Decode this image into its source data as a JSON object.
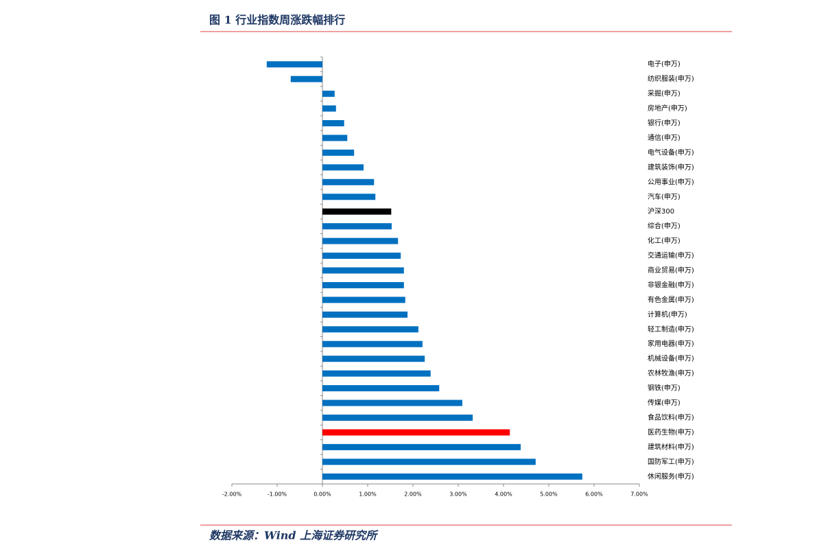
{
  "header": {
    "title": "图 1 行业指数周涨跌幅排行"
  },
  "footer": {
    "source": "数据来源：Wind  上海证券研究所"
  },
  "chart_data": {
    "type": "bar",
    "orientation": "horizontal",
    "categories": [
      "电子(申万)",
      "纺织服装(申万)",
      "采掘(申万)",
      "房地产(申万)",
      "银行(申万)",
      "通信(申万)",
      "电气设备(申万)",
      "建筑装饰(申万)",
      "公用事业(申万)",
      "汽车(申万)",
      "沪深300",
      "综合(申万)",
      "化工(申万)",
      "交通运输(申万)",
      "商业贸易(申万)",
      "非银金融(申万)",
      "有色金属(申万)",
      "计算机(申万)",
      "轻工制造(申万)",
      "家用电器(申万)",
      "机械设备(申万)",
      "农林牧渔(申万)",
      "钢铁(申万)",
      "传媒(申万)",
      "食品饮料(申万)",
      "医药生物(申万)",
      "建筑材料(申万)",
      "国防军工(申万)",
      "休闲服务(申万)"
    ],
    "values": [
      -1.23,
      -0.7,
      0.27,
      0.3,
      0.48,
      0.55,
      0.7,
      0.91,
      1.14,
      1.17,
      1.52,
      1.53,
      1.67,
      1.73,
      1.8,
      1.8,
      1.83,
      1.88,
      2.12,
      2.21,
      2.26,
      2.39,
      2.58,
      3.09,
      3.32,
      4.14,
      4.38,
      4.71,
      5.74
    ],
    "colors": [
      "#0070c0",
      "#0070c0",
      "#0070c0",
      "#0070c0",
      "#0070c0",
      "#0070c0",
      "#0070c0",
      "#0070c0",
      "#0070c0",
      "#0070c0",
      "#000000",
      "#0070c0",
      "#0070c0",
      "#0070c0",
      "#0070c0",
      "#0070c0",
      "#0070c0",
      "#0070c0",
      "#0070c0",
      "#0070c0",
      "#0070c0",
      "#0070c0",
      "#0070c0",
      "#0070c0",
      "#0070c0",
      "#ff0000",
      "#0070c0",
      "#0070c0",
      "#0070c0"
    ],
    "xlim": [
      -2,
      7
    ],
    "xticks": [
      {
        "value": -2,
        "label": "-2.00%"
      },
      {
        "value": -1,
        "label": "-1.00%"
      },
      {
        "value": 0,
        "label": "0.00%"
      },
      {
        "value": 1,
        "label": "1.00%"
      },
      {
        "value": 2,
        "label": "2.00%"
      },
      {
        "value": 3,
        "label": "3.00%"
      },
      {
        "value": 4,
        "label": "4.00%"
      },
      {
        "value": 5,
        "label": "5.00%"
      },
      {
        "value": 6,
        "label": "6.00%"
      },
      {
        "value": 7,
        "label": "7.00%"
      }
    ],
    "grid": false
  }
}
